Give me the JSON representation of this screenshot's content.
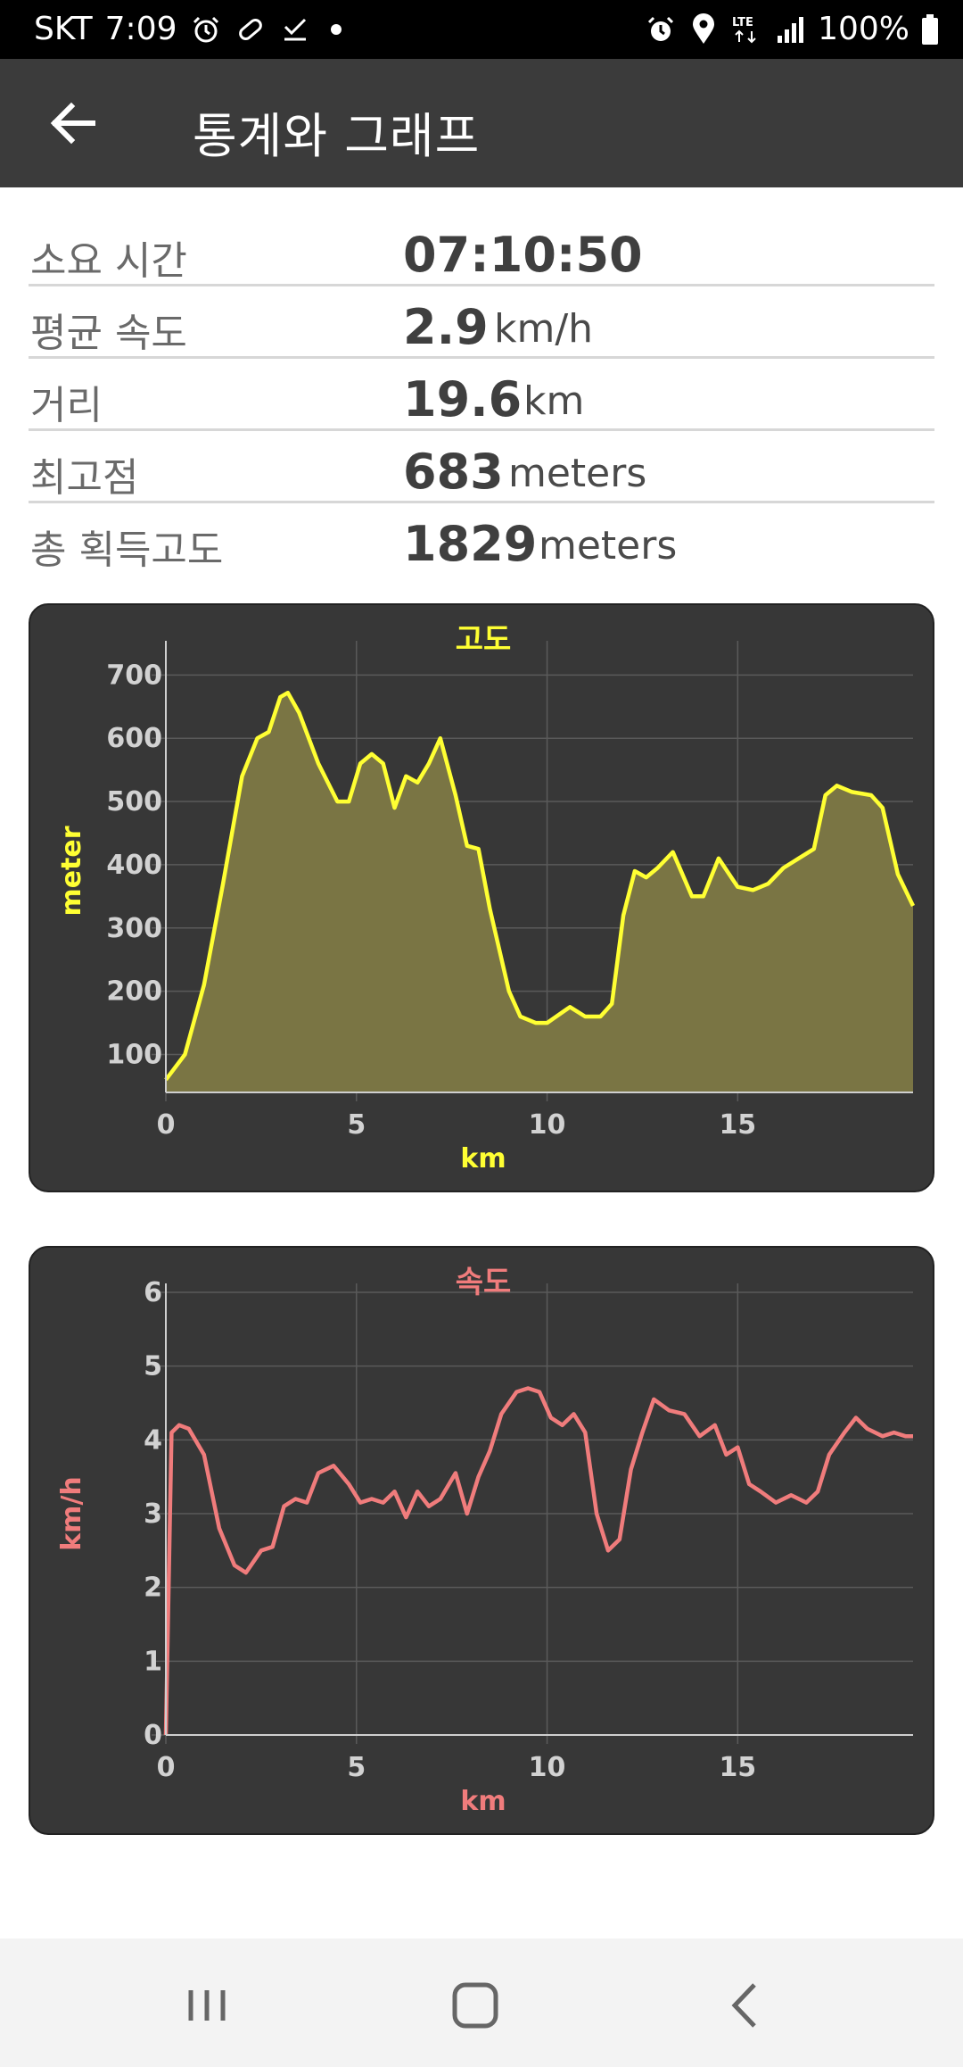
{
  "status_bar": {
    "carrier": "SKT",
    "time": "7:09",
    "battery": "100%",
    "network": "LTE",
    "icons_left": [
      "alarm-icon",
      "pill-icon",
      "check-icon",
      "dot-icon"
    ],
    "icons_right": [
      "alarm-icon",
      "location-icon",
      "lte-icon",
      "signal-icon",
      "battery-icon"
    ]
  },
  "app_bar": {
    "title": "통계와 그래프",
    "back_icon": "arrow-left-icon"
  },
  "stats": [
    {
      "label": "소요 시간",
      "value": "07:10:50",
      "unit": ""
    },
    {
      "label": "평균 속도",
      "value": "2.9",
      "unit": "km/h"
    },
    {
      "label": "거리",
      "value": "19.6",
      "unit": "km"
    },
    {
      "label": "최고점",
      "value": "683",
      "unit": "meters"
    },
    {
      "label": "총 획득고도",
      "value": "1829",
      "unit": "meters"
    }
  ],
  "chart_data": [
    {
      "type": "area",
      "title": "고도",
      "xlabel": "km",
      "ylabel": "meter",
      "color": "#ffff33",
      "fill": "#7a7544",
      "xlim": [
        0,
        19.6
      ],
      "ylim": [
        40,
        740
      ],
      "x_ticks": [
        "0",
        "5",
        "10",
        "15"
      ],
      "y_ticks": [
        "100",
        "200",
        "300",
        "400",
        "500",
        "600",
        "700"
      ],
      "grid": true,
      "x": [
        0,
        0.5,
        1,
        1.5,
        2,
        2.4,
        2.7,
        3.0,
        3.2,
        3.5,
        4.0,
        4.5,
        4.8,
        5.1,
        5.4,
        5.7,
        6.0,
        6.3,
        6.6,
        6.9,
        7.2,
        7.6,
        7.9,
        8.2,
        8.5,
        9.0,
        9.3,
        9.7,
        10.0,
        10.6,
        11.0,
        11.4,
        11.7,
        12.0,
        12.3,
        12.6,
        12.9,
        13.3,
        13.8,
        14.1,
        14.5,
        15.0,
        15.4,
        15.8,
        16.2,
        16.6,
        17.0,
        17.3,
        17.6,
        18.0,
        18.5,
        18.8,
        19.2,
        19.6
      ],
      "values": [
        60,
        100,
        210,
        370,
        540,
        600,
        610,
        665,
        672,
        640,
        560,
        500,
        500,
        560,
        575,
        560,
        490,
        540,
        530,
        560,
        600,
        510,
        430,
        425,
        330,
        200,
        160,
        150,
        150,
        175,
        160,
        160,
        180,
        320,
        390,
        380,
        395,
        420,
        350,
        350,
        410,
        365,
        360,
        370,
        395,
        410,
        425,
        510,
        525,
        515,
        510,
        490,
        385,
        335
      ]
    },
    {
      "type": "line",
      "title": "속도",
      "xlabel": "km",
      "ylabel": "km/h",
      "color": "#f07c7c",
      "xlim": [
        0,
        19.6
      ],
      "ylim": [
        0,
        6
      ],
      "x_ticks": [
        "0",
        "5",
        "10",
        "15"
      ],
      "y_ticks": [
        "0",
        "1",
        "2",
        "3",
        "4",
        "5",
        "6"
      ],
      "grid": true,
      "x": [
        0,
        0.15,
        0.35,
        0.6,
        1.0,
        1.4,
        1.8,
        2.1,
        2.5,
        2.8,
        3.1,
        3.4,
        3.7,
        4.0,
        4.4,
        4.8,
        5.1,
        5.4,
        5.7,
        6.0,
        6.3,
        6.6,
        6.9,
        7.2,
        7.6,
        7.9,
        8.2,
        8.5,
        8.8,
        9.2,
        9.5,
        9.8,
        10.1,
        10.4,
        10.7,
        11.0,
        11.3,
        11.6,
        11.9,
        12.2,
        12.5,
        12.8,
        13.2,
        13.6,
        14.0,
        14.4,
        14.7,
        15.0,
        15.3,
        15.6,
        16.0,
        16.4,
        16.8,
        17.1,
        17.4,
        17.8,
        18.1,
        18.4,
        18.8,
        19.1,
        19.4,
        19.6
      ],
      "values": [
        0,
        4.1,
        4.2,
        4.15,
        3.8,
        2.8,
        2.3,
        2.2,
        2.5,
        2.55,
        3.1,
        3.2,
        3.15,
        3.55,
        3.65,
        3.4,
        3.15,
        3.2,
        3.15,
        3.3,
        2.95,
        3.3,
        3.1,
        3.2,
        3.55,
        3.0,
        3.5,
        3.85,
        4.35,
        4.65,
        4.7,
        4.65,
        4.3,
        4.2,
        4.35,
        4.1,
        3.0,
        2.5,
        2.65,
        3.6,
        4.1,
        4.55,
        4.4,
        4.35,
        4.05,
        4.2,
        3.8,
        3.9,
        3.4,
        3.3,
        3.15,
        3.25,
        3.15,
        3.3,
        3.8,
        4.1,
        4.3,
        4.15,
        4.05,
        4.1,
        4.05,
        4.05
      ]
    }
  ]
}
